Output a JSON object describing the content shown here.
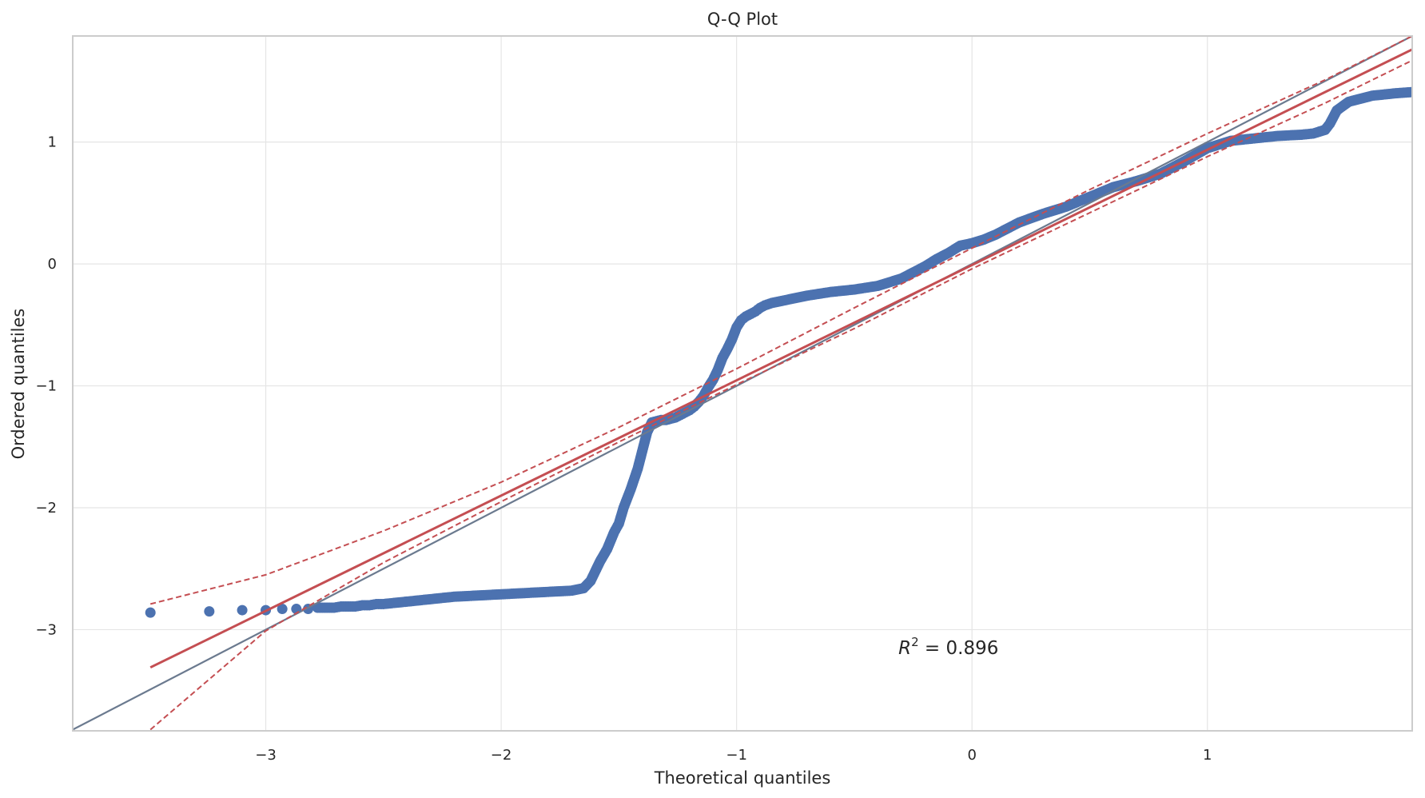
{
  "chart_data": {
    "type": "scatter",
    "title": "Q-Q Plot",
    "xlabel": "Theoretical quantiles",
    "ylabel": "Ordered quantiles",
    "xlim": [
      -3.82,
      1.87
    ],
    "ylim": [
      -3.83,
      1.87
    ],
    "grid": true,
    "x_ticks": [
      -3,
      -2,
      -1,
      0,
      1
    ],
    "x_tick_labels": [
      "−3",
      "−2",
      "−1",
      "0",
      "1"
    ],
    "y_ticks": [
      -3,
      -2,
      -1,
      0,
      1
    ],
    "y_tick_labels": [
      "−3",
      "−2",
      "−1",
      "0",
      "1"
    ],
    "annotation": {
      "label": "R",
      "superscript": "2",
      "text": " = 0.896",
      "x": -0.1,
      "y": -3.2
    },
    "colors": {
      "points": "#4c72b0",
      "fit_line": "#c44e52",
      "reference_line": "#6b7a8f",
      "grid": "#e5e5e5",
      "frame": "#cccccc"
    },
    "reference_line": {
      "x": [
        -3.82,
        1.87
      ],
      "y": [
        -3.82,
        1.87
      ]
    },
    "fit_line": {
      "x": [
        -3.49,
        1.87
      ],
      "y": [
        -3.31,
        1.76
      ]
    },
    "confidence_upper": {
      "x": [
        -3.49,
        -3.0,
        -2.5,
        -2.0,
        -1.5,
        -1.0,
        -0.5,
        0.0,
        0.5,
        1.0,
        1.5,
        1.87
      ],
      "y": [
        -2.79,
        -2.55,
        -2.19,
        -1.79,
        -1.34,
        -0.86,
        -0.36,
        0.13,
        0.61,
        1.07,
        1.51,
        1.87
      ]
    },
    "confidence_lower": {
      "x": [
        -3.49,
        -3.0,
        -2.5,
        -2.0,
        -1.5,
        -1.0,
        -0.5,
        0.0,
        0.5,
        1.0,
        1.5,
        1.87
      ],
      "y": [
        -3.82,
        -3.01,
        -2.45,
        -1.95,
        -1.46,
        -0.99,
        -0.53,
        -0.04,
        0.42,
        0.88,
        1.32,
        1.67
      ]
    },
    "series": [
      {
        "values": {
          "x": [
            -3.49,
            -3.24,
            -3.1,
            -3.0,
            -2.93,
            -2.87,
            -2.82,
            -2.78,
            -2.74,
            -2.71,
            -2.68,
            -2.65,
            -2.62,
            -2.59,
            -2.56,
            -2.53,
            -2.5,
            -2.4,
            -2.3,
            -2.2,
            -2.1,
            -2.0,
            -1.9,
            -1.8,
            -1.7,
            -1.65,
            -1.62,
            -1.6,
            -1.58,
            -1.55,
            -1.52,
            -1.5,
            -1.48,
            -1.45,
            -1.42,
            -1.4,
            -1.38,
            -1.36,
            -1.34,
            -1.32,
            -1.3,
            -1.28,
            -1.26,
            -1.24,
            -1.22,
            -1.2,
            -1.18,
            -1.16,
            -1.14,
            -1.12,
            -1.1,
            -1.08,
            -1.06,
            -1.04,
            -1.02,
            -1.0,
            -0.98,
            -0.96,
            -0.94,
            -0.92,
            -0.9,
            -0.88,
            -0.85,
            -0.8,
            -0.75,
            -0.7,
            -0.6,
            -0.5,
            -0.4,
            -0.3,
            -0.25,
            -0.2,
            -0.15,
            -0.1,
            -0.05,
            0.0,
            0.05,
            0.1,
            0.15,
            0.2,
            0.3,
            0.4,
            0.5,
            0.6,
            0.7,
            0.8,
            0.9,
            1.0,
            1.1,
            1.2,
            1.3,
            1.4,
            1.45,
            1.5,
            1.52,
            1.55,
            1.6,
            1.7,
            1.8,
            1.87
          ],
          "y": [
            -2.86,
            -2.85,
            -2.84,
            -2.84,
            -2.83,
            -2.83,
            -2.83,
            -2.82,
            -2.82,
            -2.82,
            -2.81,
            -2.81,
            -2.81,
            -2.8,
            -2.8,
            -2.79,
            -2.79,
            -2.77,
            -2.75,
            -2.73,
            -2.72,
            -2.71,
            -2.7,
            -2.69,
            -2.68,
            -2.66,
            -2.6,
            -2.52,
            -2.44,
            -2.34,
            -2.2,
            -2.13,
            -2.0,
            -1.85,
            -1.68,
            -1.53,
            -1.38,
            -1.3,
            -1.29,
            -1.28,
            -1.28,
            -1.27,
            -1.26,
            -1.24,
            -1.22,
            -1.2,
            -1.17,
            -1.13,
            -1.08,
            -1.01,
            -0.95,
            -0.87,
            -0.77,
            -0.7,
            -0.62,
            -0.52,
            -0.46,
            -0.43,
            -0.41,
            -0.39,
            -0.36,
            -0.34,
            -0.32,
            -0.3,
            -0.28,
            -0.26,
            -0.23,
            -0.21,
            -0.18,
            -0.12,
            -0.07,
            -0.02,
            0.04,
            0.09,
            0.15,
            0.17,
            0.2,
            0.24,
            0.29,
            0.34,
            0.41,
            0.47,
            0.55,
            0.63,
            0.68,
            0.74,
            0.84,
            0.95,
            1.01,
            1.03,
            1.05,
            1.06,
            1.07,
            1.1,
            1.15,
            1.26,
            1.33,
            1.38,
            1.4,
            1.41
          ]
        }
      }
    ]
  }
}
